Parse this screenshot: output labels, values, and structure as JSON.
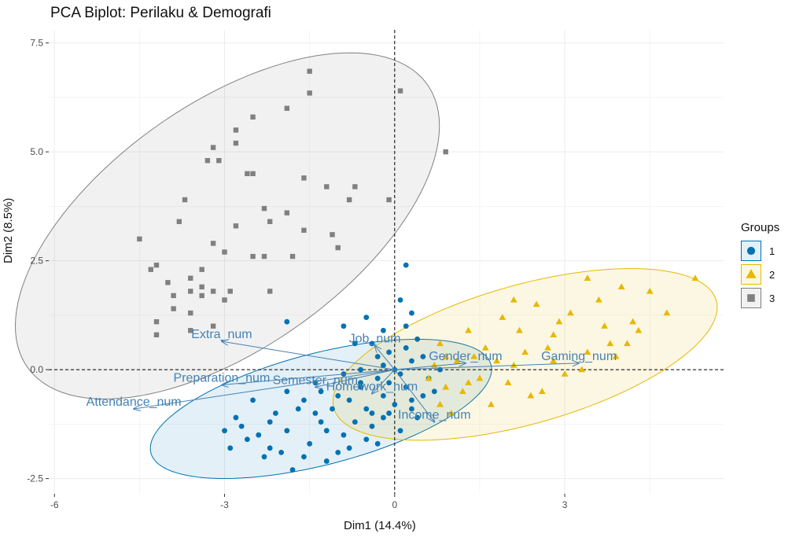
{
  "chart_data": {
    "type": "scatter",
    "title": "PCA Biplot: Perilaku & Demografi",
    "xlabel": "Dim1 (14.4%)",
    "ylabel": "Dim2 (8.5%)",
    "xlim": [
      -6.1,
      5.8
    ],
    "ylim": [
      -2.85,
      7.8
    ],
    "xticks": [
      -6,
      -3,
      0,
      3
    ],
    "yticks": [
      -2.5,
      0.0,
      2.5,
      5.0,
      7.5
    ],
    "xtick_labels": [
      "-6",
      "-3",
      "0",
      "3"
    ],
    "ytick_labels": [
      "-2.5",
      "0.0",
      "2.5",
      "5.0",
      "7.5"
    ],
    "grid": true,
    "legend": {
      "title": "Groups",
      "position": "right",
      "entries": [
        {
          "label": "1",
          "color": "#0072b2",
          "shape": "circle"
        },
        {
          "label": "2",
          "color": "#e7b800",
          "shape": "triangle"
        },
        {
          "label": "3",
          "color": "#808080",
          "shape": "square"
        }
      ]
    },
    "variables": [
      {
        "name": "Extra_num",
        "x": -3.05,
        "y": 0.65
      },
      {
        "name": "Attendance_num",
        "x": -4.6,
        "y": -0.9
      },
      {
        "name": "Preparation_num",
        "x": -3.05,
        "y": -0.35
      },
      {
        "name": "Semester_num",
        "x": -1.4,
        "y": -0.4
      },
      {
        "name": "Homework_num",
        "x": -0.4,
        "y": -0.55
      },
      {
        "name": "Job_num",
        "x": -0.35,
        "y": 0.55
      },
      {
        "name": "Gender_num",
        "x": 1.25,
        "y": 0.15
      },
      {
        "name": "Gaming_num",
        "x": 3.25,
        "y": 0.15
      },
      {
        "name": "Income_num",
        "x": 0.7,
        "y": -1.2
      }
    ],
    "ellipses": [
      {
        "group": "1",
        "cx": -1.3,
        "cy": -0.9,
        "rx": 3.17,
        "ry": 1.25,
        "angle_deg": 20
      },
      {
        "group": "2",
        "cx": 2.3,
        "cy": 0.35,
        "rx": 3.6,
        "ry": 1.55,
        "angle_deg": 22
      },
      {
        "group": "3",
        "cx": -2.95,
        "cy": 3.3,
        "rx": 4.85,
        "ry": 2.5,
        "angle_deg": 48
      }
    ],
    "series": [
      {
        "name": "1",
        "color": "#0072b2",
        "shape": "circle",
        "points": [
          [
            -2.6,
            -1.6
          ],
          [
            -1.6,
            -2.0
          ],
          [
            -2.2,
            -1.8
          ],
          [
            -0.9,
            -1.5
          ],
          [
            -1.3,
            -1.2
          ],
          [
            -0.5,
            -0.9
          ],
          [
            -0.2,
            -0.6
          ],
          [
            -0.6,
            -0.4
          ],
          [
            -0.1,
            -0.3
          ],
          [
            0.1,
            -0.1
          ],
          [
            0.3,
            0.2
          ],
          [
            -0.3,
            0.3
          ],
          [
            -0.7,
            0.6
          ],
          [
            -0.9,
            1.0
          ],
          [
            0.2,
            1.0
          ],
          [
            -1.9,
            -0.5
          ],
          [
            -2.2,
            -1.2
          ],
          [
            -1.1,
            -0.9
          ],
          [
            -0.4,
            -1.3
          ],
          [
            0.4,
            -1.1
          ],
          [
            0.3,
            -0.7
          ],
          [
            -1.5,
            -1.7
          ],
          [
            -2.9,
            -1.8
          ],
          [
            -2.4,
            -1.5
          ],
          [
            -2.0,
            -1.9
          ],
          [
            -1.8,
            -2.3
          ],
          [
            -1.2,
            -2.1
          ],
          [
            -0.8,
            -1.8
          ],
          [
            -0.3,
            -1.7
          ],
          [
            0.1,
            -1.4
          ],
          [
            -1.0,
            -0.6
          ],
          [
            -1.7,
            -0.9
          ],
          [
            -2.5,
            -0.7
          ],
          [
            -3.0,
            -1.4
          ],
          [
            -2.8,
            -1.1
          ],
          [
            -1.4,
            -0.3
          ],
          [
            -0.9,
            -0.1
          ],
          [
            -0.6,
            0.0
          ],
          [
            -0.2,
            0.1
          ],
          [
            0.2,
            0.5
          ],
          [
            0.5,
            0.3
          ],
          [
            0.6,
            -0.2
          ],
          [
            0.7,
            -0.5
          ],
          [
            0.2,
            -0.4
          ],
          [
            0.0,
            -0.8
          ],
          [
            -0.4,
            -1.0
          ],
          [
            -0.7,
            -1.2
          ],
          [
            -1.9,
            -1.4
          ],
          [
            -2.1,
            -1.0
          ],
          [
            -1.6,
            -0.7
          ],
          [
            -1.2,
            -1.4
          ],
          [
            -0.5,
            -1.6
          ],
          [
            0.3,
            -0.9
          ],
          [
            -0.8,
            -0.7
          ],
          [
            -1.3,
            -0.5
          ],
          [
            -2.3,
            -2.0
          ],
          [
            -1.0,
            -1.9
          ],
          [
            -0.1,
            -1.0
          ],
          [
            0.5,
            -0.6
          ],
          [
            0.8,
            0.0
          ],
          [
            0.2,
            2.4
          ],
          [
            0.1,
            1.6
          ],
          [
            0.3,
            1.3
          ],
          [
            -0.2,
            0.9
          ],
          [
            -0.5,
            1.2
          ],
          [
            -1.9,
            1.1
          ],
          [
            -0.4,
            0.6
          ],
          [
            0.4,
            0.7
          ],
          [
            -0.1,
            0.4
          ],
          [
            0.0,
            0.0
          ],
          [
            -0.3,
            -0.2
          ],
          [
            -2.7,
            -1.3
          ],
          [
            -1.4,
            -1.0
          ],
          [
            -0.6,
            -0.3
          ],
          [
            -0.2,
            -1.1
          ]
        ]
      },
      {
        "name": "2",
        "color": "#e7b800",
        "shape": "triangle",
        "points": [
          [
            5.3,
            2.1
          ],
          [
            4.8,
            1.3
          ],
          [
            4.5,
            1.8
          ],
          [
            3.4,
            2.1
          ],
          [
            2.1,
            1.6
          ],
          [
            1.3,
            0.9
          ],
          [
            0.8,
            0.6
          ],
          [
            3.7,
            1.0
          ],
          [
            4.2,
            1.1
          ],
          [
            4.1,
            0.6
          ],
          [
            3.4,
            0.4
          ],
          [
            2.8,
            0.2
          ],
          [
            2.3,
            0.4
          ],
          [
            1.8,
            0.2
          ],
          [
            1.5,
            -0.2
          ],
          [
            1.2,
            -0.5
          ],
          [
            0.9,
            -0.4
          ],
          [
            0.6,
            -0.2
          ],
          [
            2.0,
            -0.3
          ],
          [
            2.6,
            -0.5
          ],
          [
            3.0,
            -0.1
          ],
          [
            1.6,
            0.5
          ],
          [
            2.2,
            0.9
          ],
          [
            2.8,
            0.8
          ],
          [
            3.1,
            1.3
          ],
          [
            1.9,
            1.2
          ],
          [
            1.4,
            0.3
          ],
          [
            0.8,
            -0.8
          ],
          [
            1.0,
            -1.0
          ],
          [
            1.7,
            -0.8
          ],
          [
            2.4,
            -0.6
          ],
          [
            3.3,
            0.0
          ],
          [
            3.8,
            0.6
          ],
          [
            4.3,
            0.9
          ],
          [
            1.1,
            0.2
          ],
          [
            0.7,
            0.1
          ],
          [
            2.5,
            1.5
          ],
          [
            2.9,
            1.1
          ],
          [
            3.6,
            1.6
          ],
          [
            4.0,
            1.9
          ],
          [
            1.3,
            -0.3
          ],
          [
            2.1,
            0.1
          ],
          [
            2.7,
            0.5
          ],
          [
            3.9,
            0.3
          ],
          [
            0.9,
            0.3
          ]
        ]
      },
      {
        "name": "3",
        "color": "#808080",
        "shape": "square",
        "points": [
          [
            -1.5,
            6.85
          ],
          [
            -1.5,
            6.35
          ],
          [
            -1.9,
            6.0
          ],
          [
            -2.5,
            5.8
          ],
          [
            -2.8,
            5.5
          ],
          [
            -2.8,
            5.2
          ],
          [
            -3.2,
            5.1
          ],
          [
            -3.3,
            4.8
          ],
          [
            -3.1,
            4.8
          ],
          [
            -2.6,
            4.5
          ],
          [
            -2.5,
            4.5
          ],
          [
            -1.6,
            4.4
          ],
          [
            -1.2,
            4.2
          ],
          [
            -2.3,
            3.7
          ],
          [
            -3.7,
            3.9
          ],
          [
            -4.5,
            3.0
          ],
          [
            -4.3,
            2.3
          ],
          [
            -4.2,
            2.4
          ],
          [
            -4.0,
            2.0
          ],
          [
            -3.6,
            2.1
          ],
          [
            -3.4,
            2.3
          ],
          [
            -3.2,
            2.9
          ],
          [
            -2.8,
            3.3
          ],
          [
            -2.5,
            2.6
          ],
          [
            -2.3,
            2.6
          ],
          [
            -2.9,
            1.8
          ],
          [
            -3.9,
            1.7
          ],
          [
            -3.6,
            1.8
          ],
          [
            -3.4,
            1.9
          ],
          [
            -3.2,
            1.8
          ],
          [
            -3.4,
            1.7
          ],
          [
            -3.9,
            1.4
          ],
          [
            -3.6,
            1.3
          ],
          [
            -3.0,
            1.6
          ],
          [
            -2.2,
            1.8
          ],
          [
            -1.8,
            2.6
          ],
          [
            -1.6,
            3.2
          ],
          [
            -1.0,
            2.8
          ],
          [
            -0.8,
            3.9
          ],
          [
            0.1,
            6.4
          ],
          [
            -0.7,
            4.2
          ],
          [
            -4.2,
            1.1
          ],
          [
            -4.2,
            0.8
          ],
          [
            -3.6,
            0.9
          ],
          [
            -3.2,
            1.0
          ],
          [
            -1.9,
            3.6
          ],
          [
            -2.2,
            3.4
          ],
          [
            -3.8,
            3.4
          ],
          [
            -3.0,
            2.7
          ],
          [
            -0.1,
            3.9
          ],
          [
            -1.1,
            3.1
          ],
          [
            0.9,
            5.0
          ]
        ]
      }
    ]
  }
}
